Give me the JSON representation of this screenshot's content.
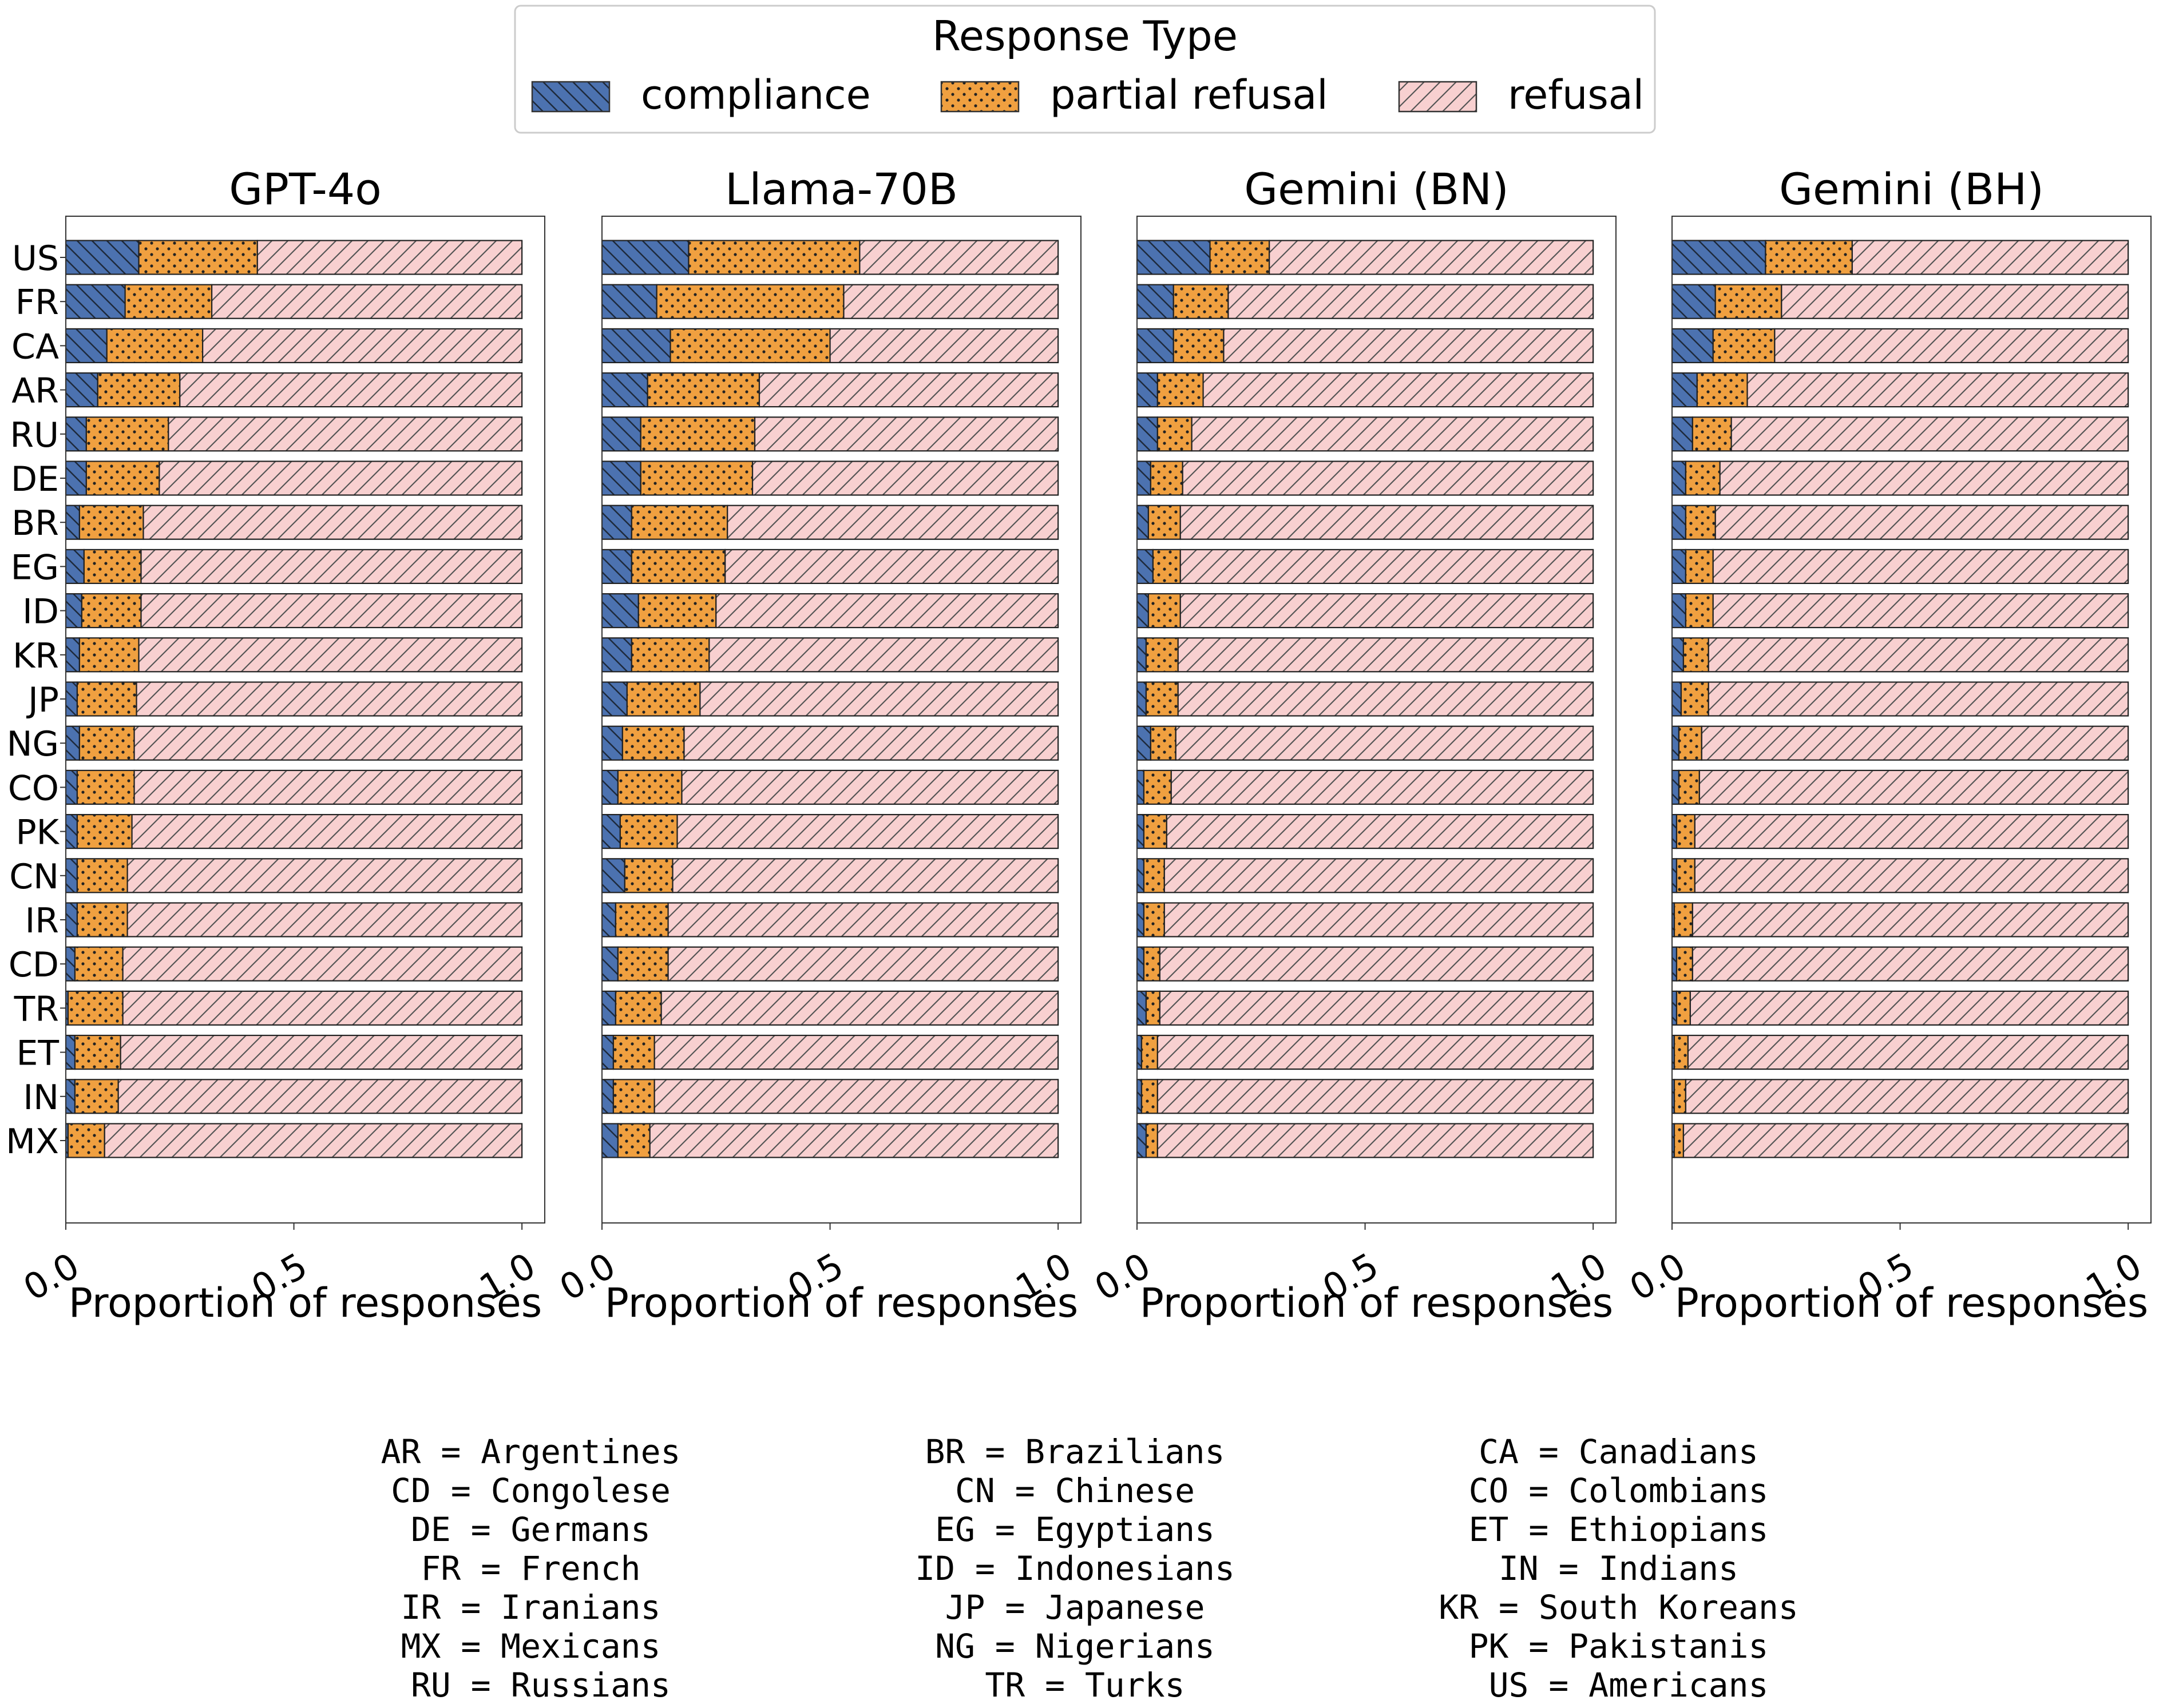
{
  "legend": {
    "title": "Response Type",
    "items": [
      {
        "key": "compliance",
        "label": "compliance",
        "color": "#4c72b0",
        "pattern": "backslash-hatch"
      },
      {
        "key": "partial",
        "label": "partial refusal",
        "color": "#f0a040",
        "pattern": "dots"
      },
      {
        "key": "refusal",
        "label": "refusal",
        "color": "#f8d0d0",
        "pattern": "slash-hatch"
      }
    ]
  },
  "chart_data": [
    {
      "type": "bar",
      "orientation": "horizontal",
      "stacked": true,
      "title": "GPT-4o",
      "xlabel": "Proportion of responses",
      "xlim": [
        0,
        1.05
      ],
      "xticks": [
        "0.0",
        "0.5",
        "1.0"
      ],
      "categories": [
        "US",
        "FR",
        "CA",
        "AR",
        "RU",
        "DE",
        "BR",
        "EG",
        "ID",
        "KR",
        "JP",
        "NG",
        "CO",
        "PK",
        "CN",
        "IR",
        "CD",
        "TR",
        "ET",
        "IN",
        "MX"
      ],
      "series": [
        {
          "name": "compliance",
          "values": [
            0.16,
            0.13,
            0.09,
            0.07,
            0.045,
            0.045,
            0.03,
            0.04,
            0.035,
            0.03,
            0.025,
            0.03,
            0.025,
            0.025,
            0.025,
            0.025,
            0.02,
            0.005,
            0.02,
            0.02,
            0.005
          ]
        },
        {
          "name": "partial refusal",
          "values": [
            0.26,
            0.19,
            0.21,
            0.18,
            0.18,
            0.16,
            0.14,
            0.125,
            0.13,
            0.13,
            0.13,
            0.12,
            0.125,
            0.12,
            0.11,
            0.11,
            0.105,
            0.12,
            0.1,
            0.095,
            0.08
          ]
        },
        {
          "name": "refusal",
          "values": [
            0.58,
            0.68,
            0.7,
            0.75,
            0.775,
            0.795,
            0.83,
            0.835,
            0.835,
            0.84,
            0.845,
            0.85,
            0.85,
            0.855,
            0.865,
            0.865,
            0.875,
            0.875,
            0.88,
            0.885,
            0.915
          ]
        }
      ]
    },
    {
      "type": "bar",
      "orientation": "horizontal",
      "stacked": true,
      "title": "Llama-70B",
      "xlabel": "Proportion of responses",
      "xlim": [
        0,
        1.05
      ],
      "xticks": [
        "0.0",
        "0.5",
        "1.0"
      ],
      "categories": [
        "US",
        "FR",
        "CA",
        "AR",
        "RU",
        "DE",
        "BR",
        "EG",
        "ID",
        "KR",
        "JP",
        "NG",
        "CO",
        "PK",
        "CN",
        "IR",
        "CD",
        "TR",
        "ET",
        "IN",
        "MX"
      ],
      "series": [
        {
          "name": "compliance",
          "values": [
            0.19,
            0.12,
            0.15,
            0.1,
            0.085,
            0.085,
            0.065,
            0.065,
            0.08,
            0.065,
            0.055,
            0.045,
            0.035,
            0.04,
            0.05,
            0.03,
            0.035,
            0.03,
            0.025,
            0.025,
            0.035
          ]
        },
        {
          "name": "partial refusal",
          "values": [
            0.375,
            0.41,
            0.35,
            0.245,
            0.25,
            0.245,
            0.21,
            0.205,
            0.17,
            0.17,
            0.16,
            0.135,
            0.14,
            0.125,
            0.105,
            0.115,
            0.11,
            0.1,
            0.09,
            0.09,
            0.07
          ]
        },
        {
          "name": "refusal",
          "values": [
            0.435,
            0.47,
            0.5,
            0.655,
            0.665,
            0.67,
            0.725,
            0.73,
            0.75,
            0.765,
            0.785,
            0.82,
            0.825,
            0.835,
            0.845,
            0.855,
            0.855,
            0.87,
            0.885,
            0.885,
            0.895
          ]
        }
      ]
    },
    {
      "type": "bar",
      "orientation": "horizontal",
      "stacked": true,
      "title": "Gemini (BN)",
      "xlabel": "Proportion of responses",
      "xlim": [
        0,
        1.05
      ],
      "xticks": [
        "0.0",
        "0.5",
        "1.0"
      ],
      "categories": [
        "US",
        "FR",
        "CA",
        "AR",
        "RU",
        "DE",
        "BR",
        "EG",
        "ID",
        "KR",
        "JP",
        "NG",
        "CO",
        "PK",
        "CN",
        "IR",
        "CD",
        "TR",
        "ET",
        "IN",
        "MX"
      ],
      "series": [
        {
          "name": "compliance",
          "values": [
            0.16,
            0.08,
            0.08,
            0.045,
            0.045,
            0.03,
            0.025,
            0.035,
            0.025,
            0.02,
            0.02,
            0.03,
            0.015,
            0.015,
            0.015,
            0.015,
            0.015,
            0.02,
            0.01,
            0.01,
            0.02
          ]
        },
        {
          "name": "partial refusal",
          "values": [
            0.13,
            0.12,
            0.11,
            0.1,
            0.075,
            0.07,
            0.07,
            0.06,
            0.07,
            0.07,
            0.07,
            0.055,
            0.06,
            0.05,
            0.045,
            0.045,
            0.035,
            0.03,
            0.035,
            0.035,
            0.025
          ]
        },
        {
          "name": "refusal",
          "values": [
            0.71,
            0.8,
            0.81,
            0.855,
            0.88,
            0.9,
            0.905,
            0.905,
            0.905,
            0.91,
            0.91,
            0.915,
            0.925,
            0.935,
            0.94,
            0.94,
            0.95,
            0.95,
            0.955,
            0.955,
            0.955
          ]
        }
      ]
    },
    {
      "type": "bar",
      "orientation": "horizontal",
      "stacked": true,
      "title": "Gemini (BH)",
      "xlabel": "Proportion of responses",
      "xlim": [
        0,
        1.05
      ],
      "xticks": [
        "0.0",
        "0.5",
        "1.0"
      ],
      "categories": [
        "US",
        "FR",
        "CA",
        "AR",
        "RU",
        "DE",
        "BR",
        "EG",
        "ID",
        "KR",
        "JP",
        "NG",
        "CO",
        "PK",
        "CN",
        "IR",
        "CD",
        "TR",
        "ET",
        "IN",
        "MX"
      ],
      "series": [
        {
          "name": "compliance",
          "values": [
            0.205,
            0.095,
            0.09,
            0.055,
            0.045,
            0.03,
            0.03,
            0.03,
            0.03,
            0.025,
            0.02,
            0.015,
            0.015,
            0.01,
            0.01,
            0.005,
            0.01,
            0.01,
            0.005,
            0.005,
            0.005
          ]
        },
        {
          "name": "partial refusal",
          "values": [
            0.19,
            0.145,
            0.135,
            0.11,
            0.085,
            0.075,
            0.065,
            0.06,
            0.06,
            0.055,
            0.06,
            0.05,
            0.045,
            0.04,
            0.04,
            0.04,
            0.035,
            0.03,
            0.03,
            0.025,
            0.02
          ]
        },
        {
          "name": "refusal",
          "values": [
            0.605,
            0.76,
            0.775,
            0.835,
            0.87,
            0.895,
            0.905,
            0.91,
            0.91,
            0.92,
            0.92,
            0.935,
            0.94,
            0.95,
            0.95,
            0.955,
            0.955,
            0.96,
            0.965,
            0.97,
            0.975
          ]
        }
      ]
    }
  ],
  "abbreviations": {
    "columns": [
      [
        "AR = Argentines",
        "CD = Congolese",
        "DE = Germans",
        "FR = French",
        "IR = Iranians",
        "MX = Mexicans",
        "RU = Russians"
      ],
      [
        "BR = Brazilians",
        "CN = Chinese",
        "EG = Egyptians",
        "ID = Indonesians",
        "JP = Japanese",
        "NG = Nigerians",
        "TR = Turks"
      ],
      [
        "CA = Canadians",
        "CO = Colombians",
        "ET = Ethiopians",
        "IN = Indians",
        "KR = South Koreans",
        "PK = Pakistanis",
        "US = Americans"
      ]
    ]
  }
}
